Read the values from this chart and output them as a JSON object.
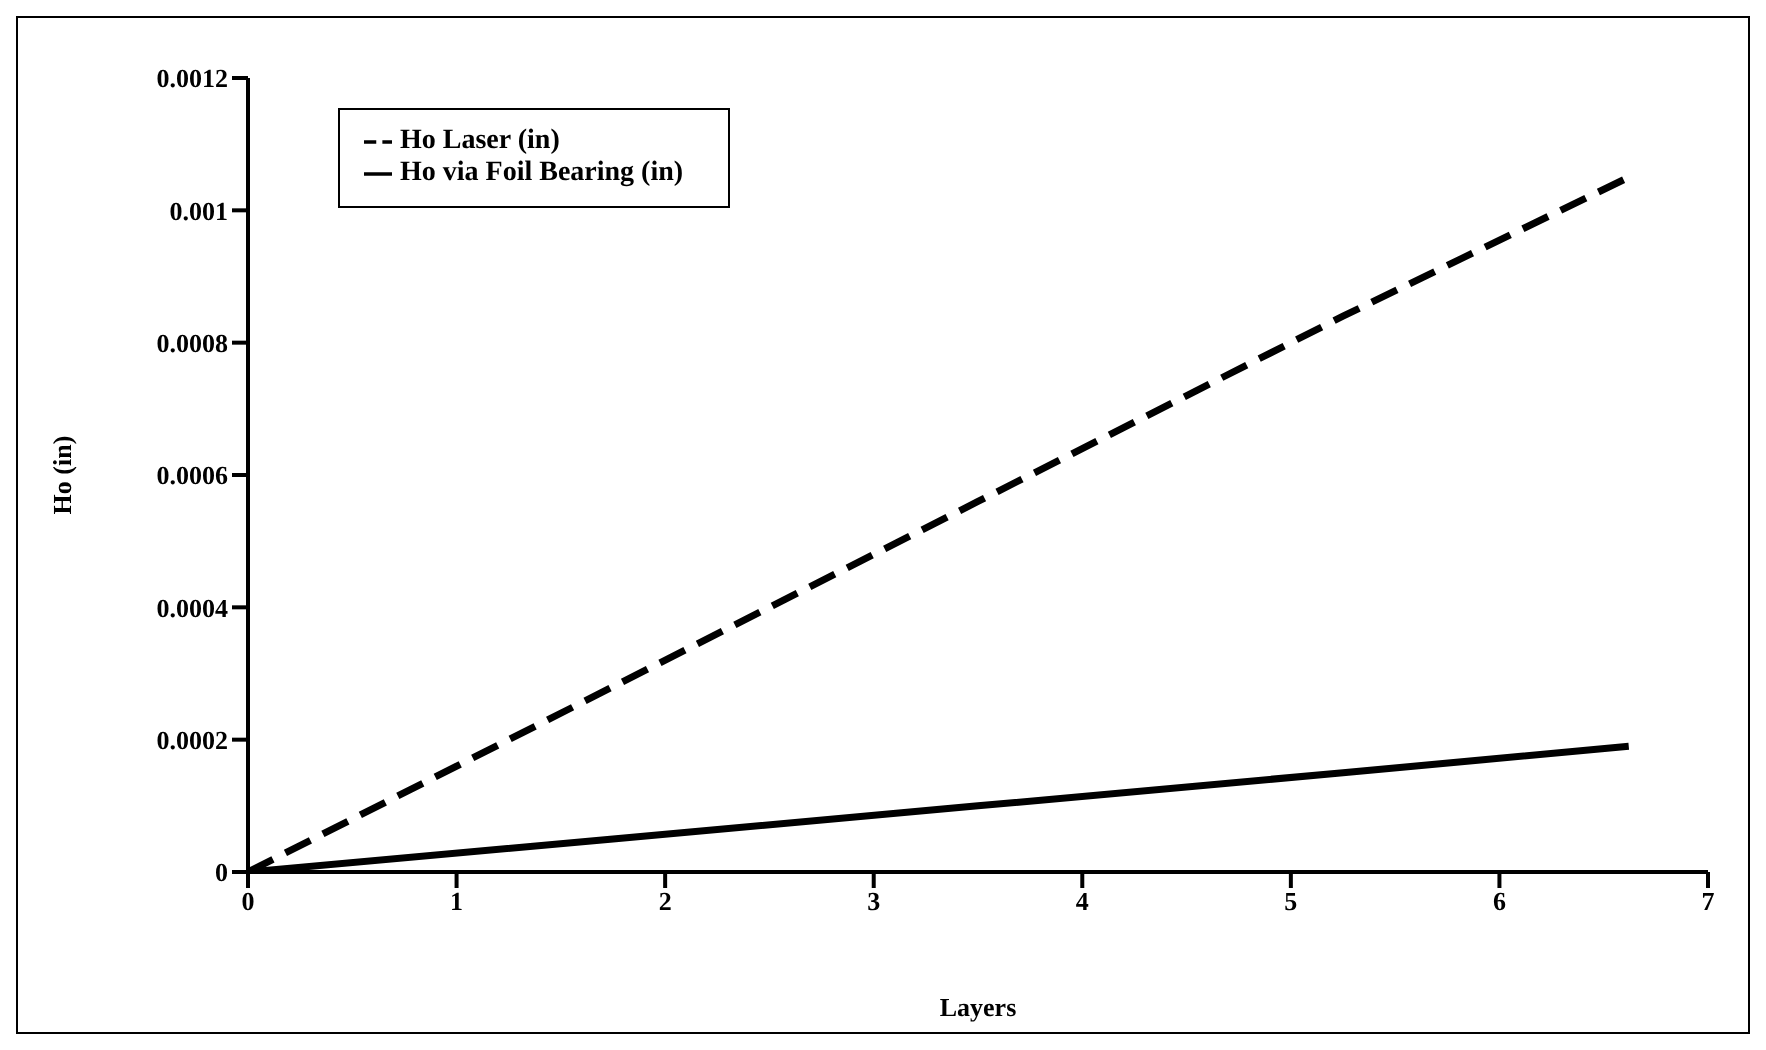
{
  "chart_data": {
    "type": "line",
    "xlabel": "Layers",
    "ylabel": "Ho (in)",
    "x": [
      0,
      1.75,
      3.5,
      5.25,
      6.62
    ],
    "series": [
      {
        "name": "Ho Laser (in)",
        "color": "#000000",
        "line_style": "dashed",
        "values": [
          0,
          0.00028,
          0.00056,
          0.00084,
          0.00105
        ]
      },
      {
        "name": "Ho via Foil Bearing (in)",
        "color": "#000000",
        "line_style": "solid",
        "values": [
          0,
          5e-05,
          0.0001,
          0.00015,
          0.00019
        ]
      }
    ],
    "xlim": [
      0,
      7
    ],
    "xticks": [
      0,
      1,
      2,
      3,
      4,
      5,
      6,
      7
    ],
    "ylim": [
      0,
      0.0012
    ],
    "yticks": [
      0,
      0.0002,
      0.0004,
      0.0006,
      0.0008,
      0.001,
      0.0012
    ],
    "grid": false,
    "legend": "top left",
    "marker": "none"
  }
}
